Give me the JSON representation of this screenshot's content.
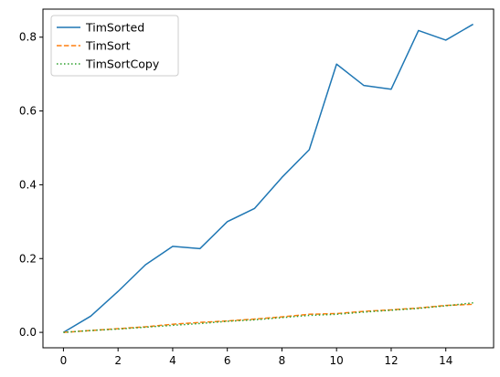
{
  "chart_data": {
    "type": "line",
    "title": "",
    "xlabel": "",
    "ylabel": "",
    "xlim": [
      -0.75,
      15.75
    ],
    "ylim": [
      -0.0418,
      0.876
    ],
    "grid": false,
    "legend_position": "top-left",
    "x_ticks": [
      0,
      2,
      4,
      6,
      8,
      10,
      12,
      14
    ],
    "x_tick_labels": [
      "0",
      "2",
      "4",
      "6",
      "8",
      "10",
      "12",
      "14"
    ],
    "y_ticks": [
      0.0,
      0.2,
      0.4,
      0.6,
      0.8
    ],
    "y_tick_labels": [
      "0.0",
      "0.2",
      "0.4",
      "0.6",
      "0.8"
    ],
    "x": [
      0,
      1,
      2,
      3,
      4,
      5,
      6,
      7,
      8,
      9,
      10,
      11,
      12,
      13,
      14,
      15
    ],
    "series": [
      {
        "name": "TimSorted",
        "color": "#1f77b4",
        "style": "solid",
        "values": [
          0.0,
          0.044,
          0.111,
          0.183,
          0.233,
          0.227,
          0.3,
          0.336,
          0.42,
          0.495,
          0.727,
          0.669,
          0.659,
          0.818,
          0.792,
          0.835
        ]
      },
      {
        "name": "TimSort",
        "color": "#ff7f0e",
        "style": "dashed",
        "values": [
          0.0,
          0.005,
          0.01,
          0.015,
          0.022,
          0.027,
          0.031,
          0.036,
          0.042,
          0.049,
          0.051,
          0.057,
          0.061,
          0.066,
          0.073,
          0.076
        ]
      },
      {
        "name": "TimSortCopy",
        "color": "#2ca02c",
        "style": "dotted",
        "values": [
          0.0,
          0.005,
          0.009,
          0.014,
          0.019,
          0.024,
          0.03,
          0.034,
          0.04,
          0.046,
          0.049,
          0.055,
          0.06,
          0.065,
          0.072,
          0.08
        ]
      }
    ]
  }
}
